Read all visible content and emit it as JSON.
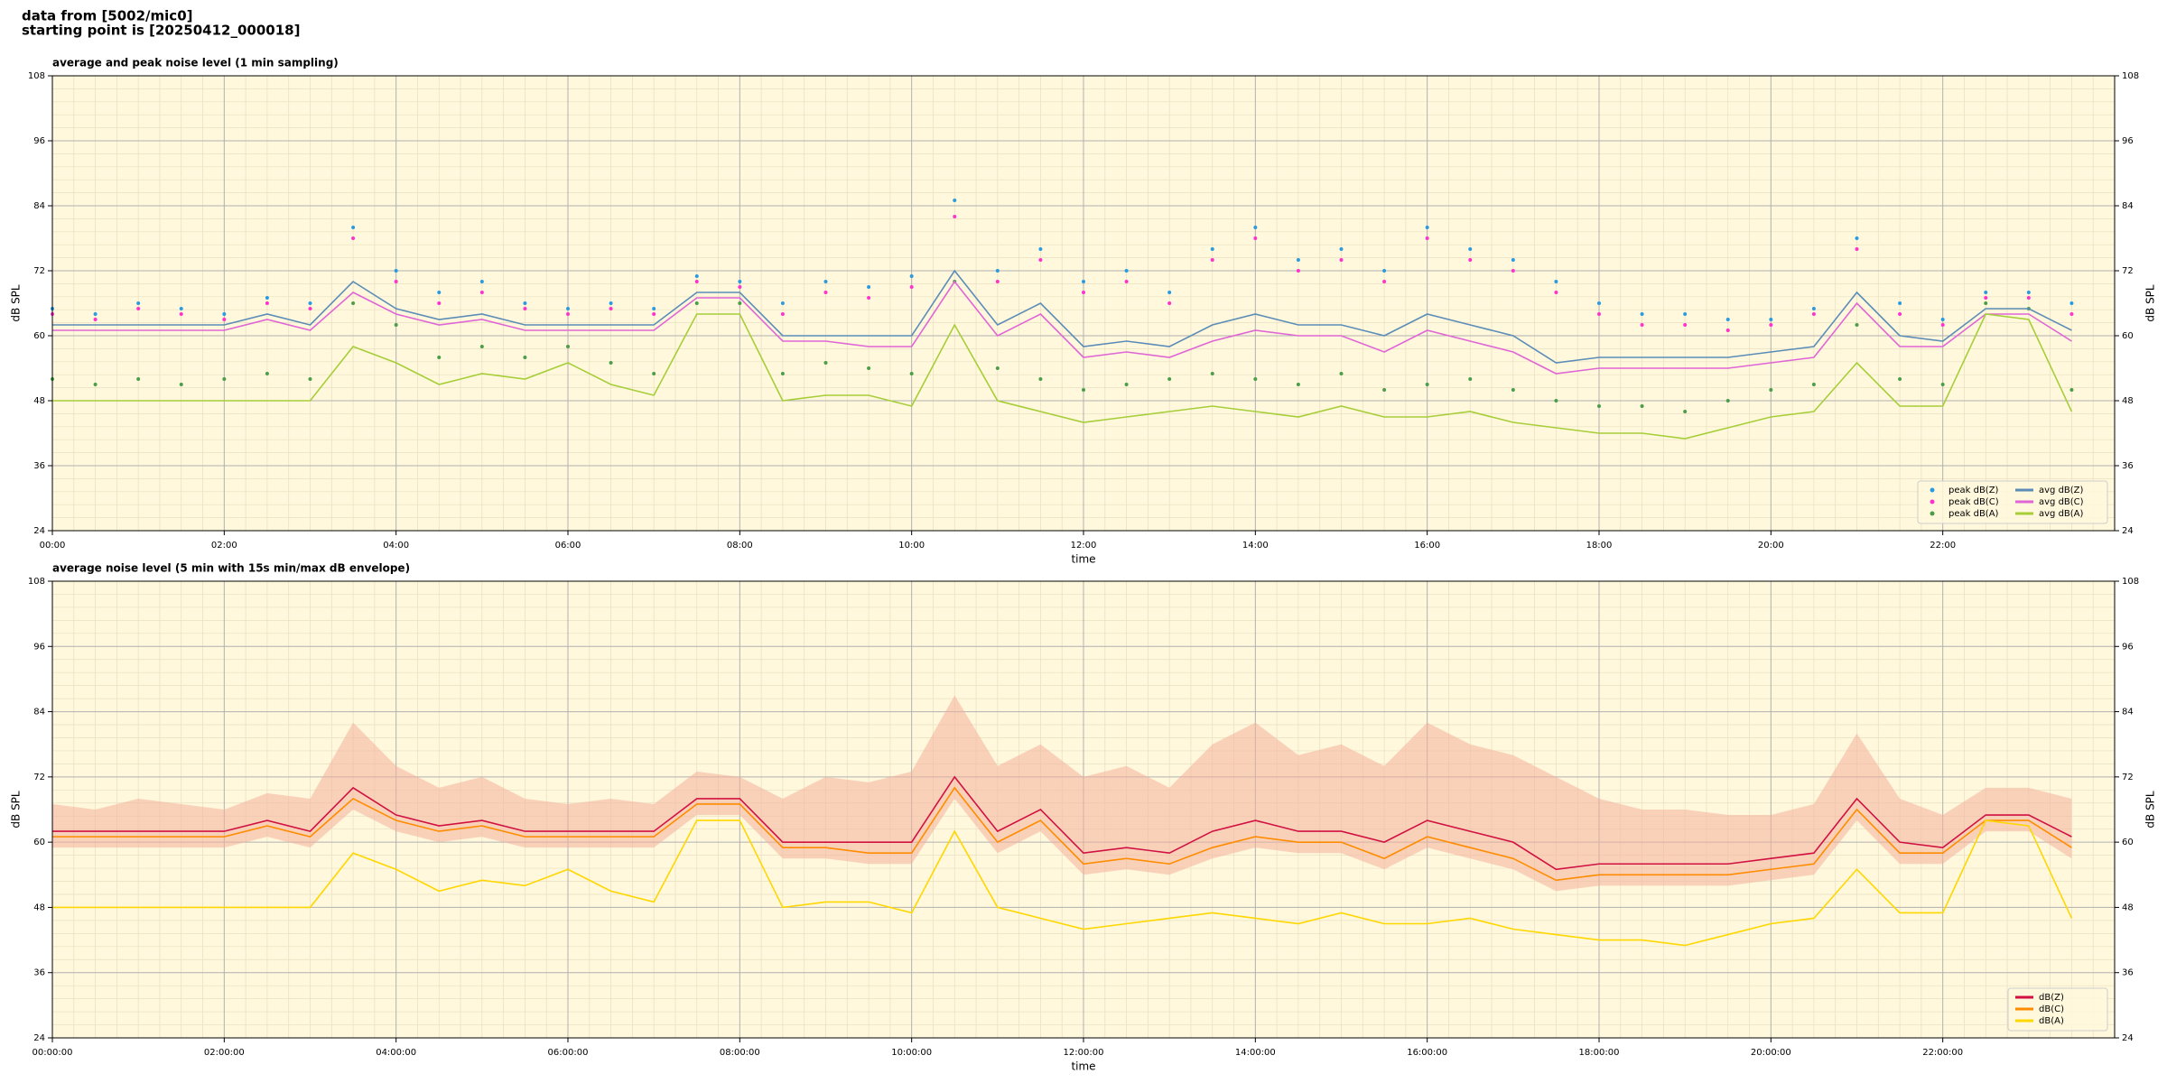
{
  "header": [
    "data from [5002/mic0]",
    "starting point is [20250412_000018]"
  ],
  "chart_data": [
    {
      "type": "line",
      "title": "average and peak noise level (1 min sampling)",
      "xlabel": "time",
      "ylabel": "dB SPL",
      "background": "#fff8dc",
      "grid": true,
      "legend": "lower right",
      "x": [
        "00:00",
        "00:30",
        "01:00",
        "01:30",
        "02:00",
        "02:30",
        "03:00",
        "03:30",
        "04:00",
        "04:30",
        "05:00",
        "05:30",
        "06:00",
        "06:30",
        "07:00",
        "07:30",
        "08:00",
        "08:30",
        "09:00",
        "09:30",
        "10:00",
        "10:30",
        "11:00",
        "11:30",
        "12:00",
        "12:30",
        "13:00",
        "13:30",
        "14:00",
        "14:30",
        "15:00",
        "15:30",
        "16:00",
        "16:30",
        "17:00",
        "17:30",
        "18:00",
        "18:30",
        "19:00",
        "19:30",
        "20:00",
        "20:30",
        "21:00",
        "21:30",
        "22:00",
        "22:30",
        "23:00",
        "23:30"
      ],
      "xlim": [
        "00:00",
        "24:00"
      ],
      "xticks": [
        "00:00",
        "02:00",
        "04:00",
        "06:00",
        "08:00",
        "10:00",
        "12:00",
        "14:00",
        "16:00",
        "18:00",
        "20:00",
        "22:00"
      ],
      "ylim": [
        24,
        108
      ],
      "yticks": [
        24,
        36,
        48,
        60,
        72,
        84,
        96,
        108
      ],
      "series": [
        {
          "name": "peak dB(Z)",
          "style": "points",
          "color": "#2b9be0",
          "values": [
            65,
            64,
            66,
            65,
            64,
            67,
            66,
            80,
            72,
            68,
            70,
            66,
            65,
            66,
            65,
            71,
            70,
            66,
            70,
            69,
            71,
            85,
            72,
            76,
            70,
            72,
            68,
            76,
            80,
            74,
            76,
            72,
            80,
            76,
            74,
            70,
            66,
            64,
            64,
            63,
            63,
            65,
            78,
            66,
            63,
            68,
            68,
            66
          ]
        },
        {
          "name": "peak dB(C)",
          "style": "points",
          "color": "#ff33cc",
          "values": [
            64,
            63,
            65,
            64,
            63,
            66,
            65,
            78,
            70,
            66,
            68,
            65,
            64,
            65,
            64,
            70,
            69,
            64,
            68,
            67,
            69,
            82,
            70,
            74,
            68,
            70,
            66,
            74,
            78,
            72,
            74,
            70,
            78,
            74,
            72,
            68,
            64,
            62,
            62,
            61,
            62,
            64,
            76,
            64,
            62,
            67,
            67,
            64
          ]
        },
        {
          "name": "peak dB(A)",
          "style": "points",
          "color": "#4a9e4a",
          "values": [
            52,
            51,
            52,
            51,
            52,
            53,
            52,
            66,
            62,
            56,
            58,
            56,
            58,
            55,
            53,
            66,
            66,
            53,
            55,
            54,
            53,
            70,
            54,
            52,
            50,
            51,
            52,
            53,
            52,
            51,
            53,
            50,
            51,
            52,
            50,
            48,
            47,
            47,
            46,
            48,
            50,
            51,
            62,
            52,
            51,
            66,
            65,
            50
          ]
        },
        {
          "name": "avg dB(Z)",
          "style": "line",
          "color": "#5b8db8",
          "values": [
            62,
            62,
            62,
            62,
            62,
            64,
            62,
            70,
            65,
            63,
            64,
            62,
            62,
            62,
            62,
            68,
            68,
            60,
            60,
            60,
            60,
            72,
            62,
            66,
            58,
            59,
            58,
            62,
            64,
            62,
            62,
            60,
            64,
            62,
            60,
            55,
            56,
            56,
            56,
            56,
            57,
            58,
            68,
            60,
            59,
            65,
            65,
            61
          ]
        },
        {
          "name": "avg dB(C)",
          "style": "line",
          "color": "#e066d6",
          "values": [
            61,
            61,
            61,
            61,
            61,
            63,
            61,
            68,
            64,
            62,
            63,
            61,
            61,
            61,
            61,
            67,
            67,
            59,
            59,
            58,
            58,
            70,
            60,
            64,
            56,
            57,
            56,
            59,
            61,
            60,
            60,
            57,
            61,
            59,
            57,
            53,
            54,
            54,
            54,
            54,
            55,
            56,
            66,
            58,
            58,
            64,
            64,
            59
          ]
        },
        {
          "name": "avg dB(A)",
          "style": "line",
          "color": "#a6ce39",
          "values": [
            48,
            48,
            48,
            48,
            48,
            48,
            48,
            58,
            55,
            51,
            53,
            52,
            55,
            51,
            49,
            64,
            64,
            48,
            49,
            49,
            47,
            62,
            48,
            46,
            44,
            45,
            46,
            47,
            46,
            45,
            47,
            45,
            45,
            46,
            44,
            43,
            42,
            42,
            41,
            43,
            45,
            46,
            55,
            47,
            47,
            64,
            63,
            46
          ]
        }
      ]
    },
    {
      "type": "line",
      "title": "average noise level (5 min with 15s min/max dB envelope)",
      "xlabel": "time",
      "ylabel": "dB SPL",
      "background": "#fff8dc",
      "grid": true,
      "legend": "lower right",
      "x": [
        "00:00:00",
        "00:30:00",
        "01:00:00",
        "01:30:00",
        "02:00:00",
        "02:30:00",
        "03:00:00",
        "03:30:00",
        "04:00:00",
        "04:30:00",
        "05:00:00",
        "05:30:00",
        "06:00:00",
        "06:30:00",
        "07:00:00",
        "07:30:00",
        "08:00:00",
        "08:30:00",
        "09:00:00",
        "09:30:00",
        "10:00:00",
        "10:30:00",
        "11:00:00",
        "11:30:00",
        "12:00:00",
        "12:30:00",
        "13:00:00",
        "13:30:00",
        "14:00:00",
        "14:30:00",
        "15:00:00",
        "15:30:00",
        "16:00:00",
        "16:30:00",
        "17:00:00",
        "17:30:00",
        "18:00:00",
        "18:30:00",
        "19:00:00",
        "19:30:00",
        "20:00:00",
        "20:30:00",
        "21:00:00",
        "21:30:00",
        "22:00:00",
        "22:30:00",
        "23:00:00",
        "23:30:00"
      ],
      "xlim": [
        "00:00:00",
        "24:00:00"
      ],
      "xticks": [
        "00:00:00",
        "02:00:00",
        "04:00:00",
        "06:00:00",
        "08:00:00",
        "10:00:00",
        "12:00:00",
        "14:00:00",
        "16:00:00",
        "18:00:00",
        "20:00:00",
        "22:00:00"
      ],
      "ylim": [
        24,
        108
      ],
      "yticks": [
        24,
        36,
        48,
        60,
        72,
        84,
        96,
        108
      ],
      "envelope": {
        "color": "#f4b09c",
        "low": [
          59,
          59,
          59,
          59,
          59,
          61,
          59,
          66,
          62,
          60,
          61,
          59,
          59,
          59,
          59,
          65,
          65,
          57,
          57,
          56,
          56,
          68,
          58,
          62,
          54,
          55,
          54,
          57,
          59,
          58,
          58,
          55,
          59,
          57,
          55,
          51,
          52,
          52,
          52,
          52,
          53,
          54,
          64,
          56,
          56,
          62,
          62,
          57
        ],
        "high": [
          67,
          66,
          68,
          67,
          66,
          69,
          68,
          82,
          74,
          70,
          72,
          68,
          67,
          68,
          67,
          73,
          72,
          68,
          72,
          71,
          73,
          87,
          74,
          78,
          72,
          74,
          70,
          78,
          82,
          76,
          78,
          74,
          82,
          78,
          76,
          72,
          68,
          66,
          66,
          65,
          65,
          67,
          80,
          68,
          65,
          70,
          70,
          68
        ]
      },
      "series": [
        {
          "name": "dB(Z)",
          "style": "line",
          "color": "#d11141",
          "values": [
            62,
            62,
            62,
            62,
            62,
            64,
            62,
            70,
            65,
            63,
            64,
            62,
            62,
            62,
            62,
            68,
            68,
            60,
            60,
            60,
            60,
            72,
            62,
            66,
            58,
            59,
            58,
            62,
            64,
            62,
            62,
            60,
            64,
            62,
            60,
            55,
            56,
            56,
            56,
            56,
            57,
            58,
            68,
            60,
            59,
            65,
            65,
            61
          ]
        },
        {
          "name": "dB(C)",
          "style": "line",
          "color": "#ff8c00",
          "values": [
            61,
            61,
            61,
            61,
            61,
            63,
            61,
            68,
            64,
            62,
            63,
            61,
            61,
            61,
            61,
            67,
            67,
            59,
            59,
            58,
            58,
            70,
            60,
            64,
            56,
            57,
            56,
            59,
            61,
            60,
            60,
            57,
            61,
            59,
            57,
            53,
            54,
            54,
            54,
            54,
            55,
            56,
            66,
            58,
            58,
            64,
            64,
            59
          ]
        },
        {
          "name": "dB(A)",
          "style": "line",
          "color": "#ffd700",
          "values": [
            48,
            48,
            48,
            48,
            48,
            48,
            48,
            58,
            55,
            51,
            53,
            52,
            55,
            51,
            49,
            64,
            64,
            48,
            49,
            49,
            47,
            62,
            48,
            46,
            44,
            45,
            46,
            47,
            46,
            45,
            47,
            45,
            45,
            46,
            44,
            43,
            42,
            42,
            41,
            43,
            45,
            46,
            55,
            47,
            47,
            64,
            63,
            46
          ]
        }
      ]
    }
  ]
}
